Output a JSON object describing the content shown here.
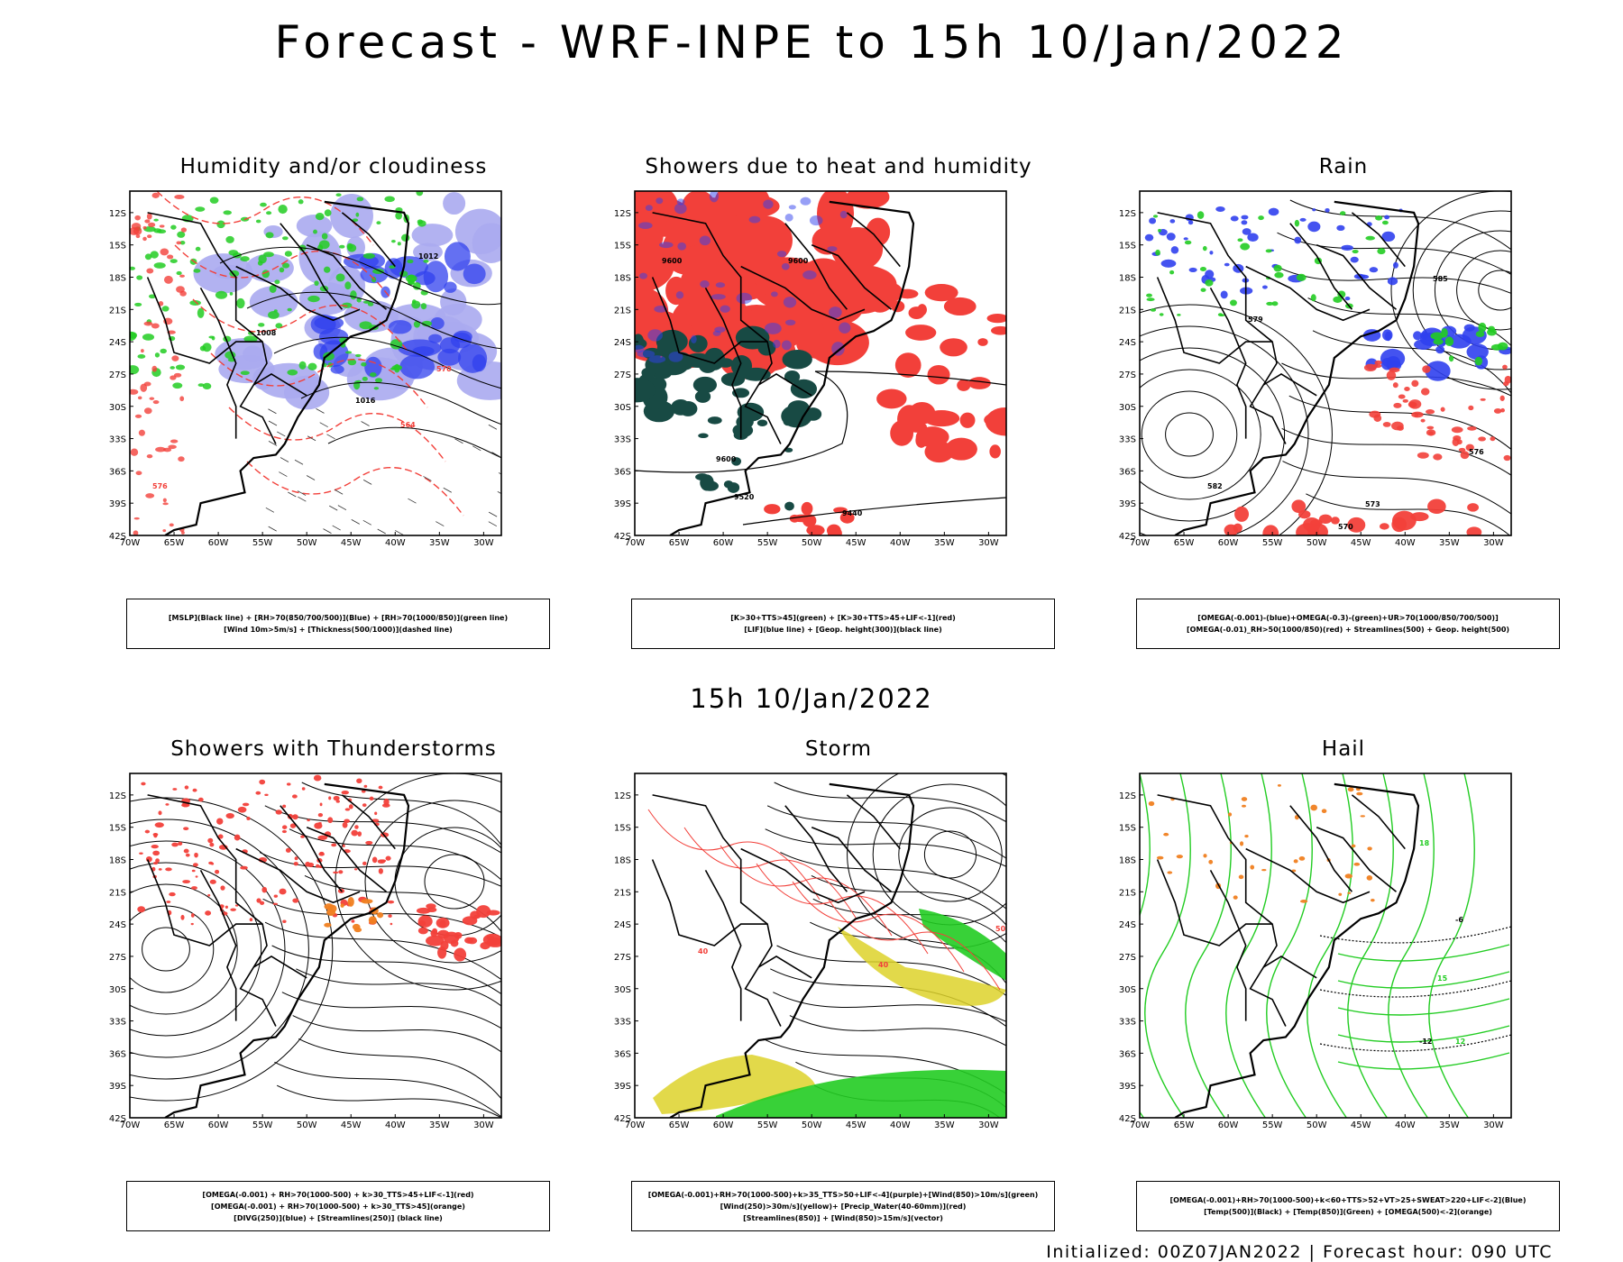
{
  "header": {
    "title": "Forecast - WRF-INPE to 15h 10/Jan/2022"
  },
  "middle": {
    "title": "15h 10/Jan/2022"
  },
  "axes": {
    "lon_labels": [
      "70W",
      "65W",
      "60W",
      "55W",
      "50W",
      "45W",
      "40W",
      "35W",
      "30W"
    ],
    "lat_labels": [
      "12S",
      "15S",
      "18S",
      "21S",
      "24S",
      "27S",
      "30S",
      "33S",
      "36S",
      "39S",
      "42S"
    ]
  },
  "panels": [
    {
      "id": "humidity",
      "title": "Humidity and/or cloudiness",
      "legend": [
        "[MSLP](Black line) + [RH>70(850/700/500)](Blue) + [RH>70(1000/850)](green line)",
        "[Wind 10m>5m/s] + [Thickness(500/1000)](dashed line)"
      ],
      "contour_labels": [
        "1012",
        "1008",
        "1016",
        "576",
        "570",
        "564"
      ]
    },
    {
      "id": "showers-heat",
      "title": "Showers due to heat and humidity",
      "legend": [
        "[K>30+TTS>45](green) + [K>30+TTS>45+LIF<-1](red)",
        "[LIF](blue line) + [Geop. height(300)](black line)"
      ],
      "contour_labels": [
        "9600",
        "9520",
        "9440"
      ]
    },
    {
      "id": "rain",
      "title": "Rain",
      "legend": [
        "[OMEGA(-0.001)-(blue)+OMEGA(-0.3)-(green)+UR>70(1000/850/700/500)]",
        "[OMEGA(-0.01)_RH>50(1000/850)(red) + Streamlines(500) + Geop. height(500)"
      ],
      "contour_labels": [
        "585",
        "582",
        "579",
        "576",
        "573",
        "570"
      ]
    },
    {
      "id": "thunderstorms",
      "title": "Showers with Thunderstorms",
      "legend": [
        "[OMEGA(-0.001) + RH>70(1000-500) + k>30_TTS>45+LIF<-1](red)",
        "[OMEGA(-0.001) + RH>70(1000-500) + k>30_TTS>45](orange)",
        "[DIVG(250)](blue) + [Streamlines(250)] (black line)"
      ],
      "contour_labels": []
    },
    {
      "id": "storm",
      "title": "Storm",
      "legend": [
        "[OMEGA(-0.001)+RH>70(1000-500)+k>35_TTS>50+LIF<-4](purple)+[Wind(850)>10m/s](green)",
        "[Wind(250)>30m/s](yellow)+ [Precip_Water(40-60mm)](red)",
        "[Streamlines(850)] + [Wind(850)>15m/s](vector)"
      ],
      "contour_labels": [
        "40",
        "50"
      ]
    },
    {
      "id": "hail",
      "title": "Hail",
      "legend": [
        "[OMEGA(-0.001)+RH>70(1000-500)+k<60+TTS>52+VT>25+SWEAT>220+LIF<-2](Blue)",
        "[Temp(500)](Black) + [Temp(850)](Green) + [OMEGA(500)<-2](orange)"
      ],
      "contour_labels": [
        "18",
        "15",
        "12",
        "-6",
        "-12"
      ]
    }
  ],
  "footer": {
    "text": "Initialized: 00Z07JAN2022 | Forecast hour: 090 UTC"
  },
  "colors": {
    "red": "#f2403a",
    "green": "#22cc22",
    "blue": "#3040ee",
    "lightblue": "#aaaaf0",
    "darkgreen": "#184a44",
    "yellow": "#ddd22a",
    "orange": "#f08020",
    "purple": "#9933cc"
  }
}
